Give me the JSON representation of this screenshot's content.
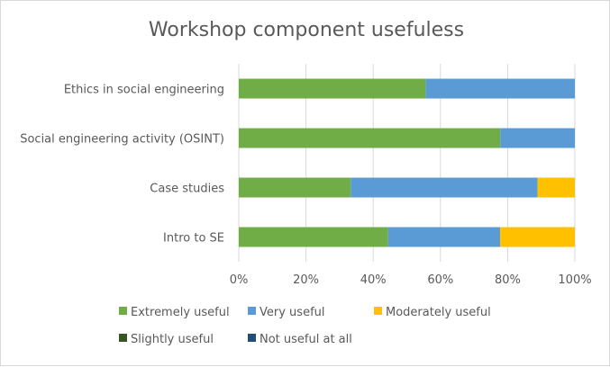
{
  "chart_data": {
    "type": "bar",
    "orientation": "horizontal",
    "stacked": "percent",
    "title": "Workshop component usefuless",
    "xlabel": "",
    "ylabel": "",
    "categories": [
      "Ethics in social engineering",
      "Social engineering activity (OSINT)",
      "Case studies",
      "Intro to SE"
    ],
    "series": [
      {
        "name": "Extremely useful",
        "color": "#70ad47",
        "values": [
          55.6,
          77.8,
          33.3,
          44.4
        ]
      },
      {
        "name": "Very useful",
        "color": "#5b9bd5",
        "values": [
          44.4,
          22.2,
          55.6,
          33.3
        ]
      },
      {
        "name": "Moderately useful",
        "color": "#ffc000",
        "values": [
          0,
          0,
          11.1,
          22.2
        ]
      },
      {
        "name": "Slightly useful",
        "color": "#375623",
        "values": [
          0,
          0,
          0,
          0
        ]
      },
      {
        "name": "Not useful at all",
        "color": "#1f4e79",
        "values": [
          0,
          0,
          0,
          0
        ]
      }
    ],
    "xlim": [
      0,
      100
    ],
    "xticks": [
      "0%",
      "20%",
      "40%",
      "60%",
      "80%",
      "100%"
    ],
    "grid": true,
    "legend_position": "bottom"
  }
}
